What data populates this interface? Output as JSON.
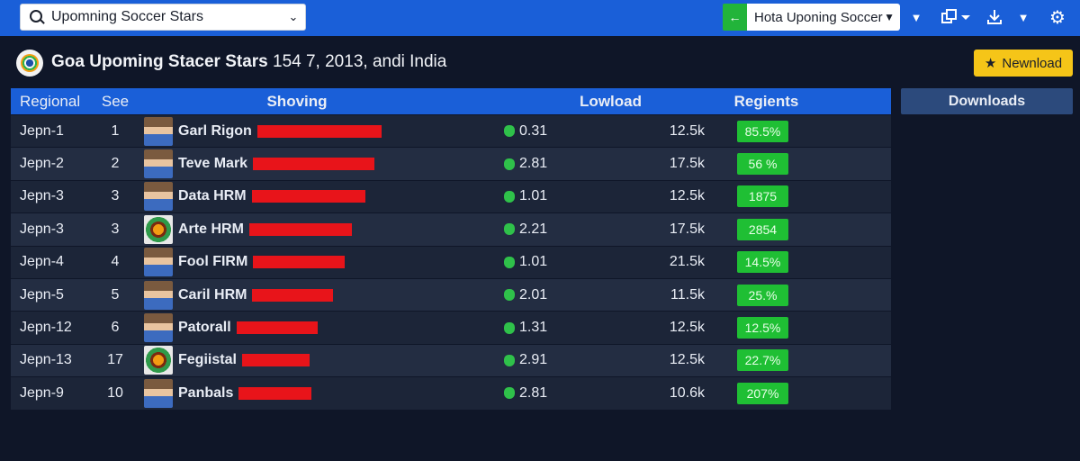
{
  "toolbar": {
    "search_value": "Upomning Soccer Stars",
    "dropdown_value": "Hota Uponing Soccer",
    "back_glyph": "←",
    "icons": [
      "chevron-down-icon",
      "window-copy-icon",
      "download-icon",
      "chevron-down-icon",
      "gear-icon"
    ]
  },
  "header": {
    "title_bold": "Goa Upoming Stacer Stars",
    "title_rest": "154 7, 2013, andi India",
    "newload_label": "Newnload"
  },
  "columns": {
    "regional": "Regional",
    "see": "See",
    "showing": "Shoving",
    "lowload": "Lowload",
    "regients": "Regients",
    "downloads": "Downloads"
  },
  "rows": [
    {
      "regional": "Jepn-1",
      "see": "1",
      "name": "Garl Rigon",
      "bar": 0.46,
      "lowload": "0.31",
      "size": "12.5k",
      "pct": "85.5%",
      "avatar": "photo"
    },
    {
      "regional": "Jepn-2",
      "see": "2",
      "name": "Teve Mark",
      "bar": 0.45,
      "lowload": "2.81",
      "size": "17.5k",
      "pct": "56 %",
      "avatar": "photo"
    },
    {
      "regional": "Jepn-3",
      "see": "3",
      "name": "Data HRM",
      "bar": 0.42,
      "lowload": "1.01",
      "size": "12.5k",
      "pct": "1875",
      "avatar": "photo"
    },
    {
      "regional": "Jepn-3",
      "see": "3",
      "name": "Arte HRM",
      "bar": 0.38,
      "lowload": "2.21",
      "size": "17.5k",
      "pct": "2854",
      "avatar": "badge"
    },
    {
      "regional": "Jepn-4",
      "see": "4",
      "name": "Fool FIRM",
      "bar": 0.34,
      "lowload": "1.01",
      "size": "21.5k",
      "pct": "14.5%",
      "avatar": "photo"
    },
    {
      "regional": "Jepn-5",
      "see": "5",
      "name": "Caril HRM",
      "bar": 0.3,
      "lowload": "2.01",
      "size": "11.5k",
      "pct": "25.%",
      "avatar": "photo"
    },
    {
      "regional": "Jepn-12",
      "see": "6",
      "name": "Patorall",
      "bar": 0.3,
      "lowload": "1.31",
      "size": "12.5k",
      "pct": "12.5%",
      "avatar": "photo"
    },
    {
      "regional": "Jepn-13",
      "see": "17",
      "name": "Fegiistal",
      "bar": 0.25,
      "lowload": "2.91",
      "size": "12.5k",
      "pct": "22.7%",
      "avatar": "badge"
    },
    {
      "regional": "Jepn-9",
      "see": "10",
      "name": "Panbals",
      "bar": 0.27,
      "lowload": "2.81",
      "size": "10.6k",
      "pct": "207%",
      "avatar": "photo"
    }
  ],
  "colors": {
    "topbar": "#1a5fd8",
    "bar": "#e8141a",
    "pct_badge": "#1fbf34",
    "newload": "#f5c518",
    "background": "#0f1628"
  }
}
